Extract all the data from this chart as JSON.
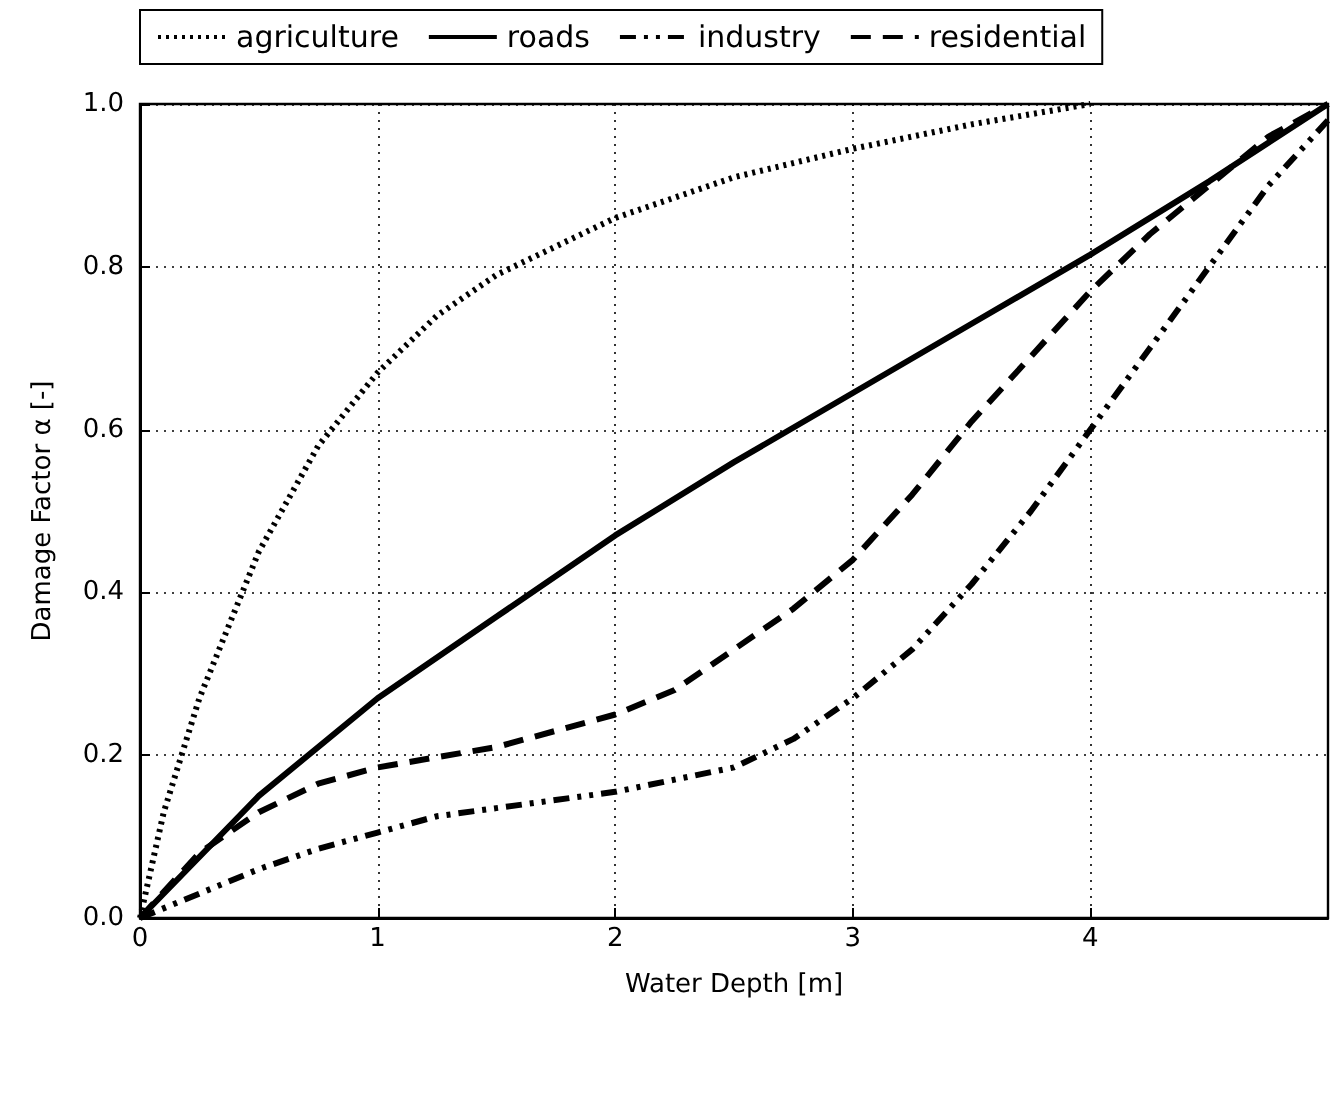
{
  "chart_data": {
    "type": "line",
    "xlabel": "Water Depth [m]",
    "ylabel": "Damage Factor α [-]",
    "xlim": [
      0,
      5
    ],
    "ylim": [
      0,
      1
    ],
    "xticks": [
      0,
      1,
      2,
      3,
      4
    ],
    "yticks": [
      {
        "value": 0,
        "label": "0.0"
      },
      {
        "value": 0.2,
        "label": "0.2"
      },
      {
        "value": 0.4,
        "label": "0.4"
      },
      {
        "value": 0.6,
        "label": "0.6"
      },
      {
        "value": 0.8,
        "label": "0.8"
      },
      {
        "value": 1,
        "label": "1.0"
      }
    ],
    "grid": true,
    "legend": "top",
    "marker": "none",
    "series": [
      {
        "name": "agriculture",
        "color": "#000000",
        "line_style": "dotted",
        "x": [
          0,
          0.1,
          0.25,
          0.5,
          0.75,
          1,
          1.25,
          1.5,
          2,
          2.5,
          3,
          3.5,
          4
        ],
        "values": [
          0,
          0.13,
          0.27,
          0.45,
          0.58,
          0.67,
          0.74,
          0.79,
          0.86,
          0.91,
          0.945,
          0.975,
          1.0
        ]
      },
      {
        "name": "roads",
        "color": "#000000",
        "line_style": "solid",
        "x": [
          0,
          0.5,
          1,
          1.5,
          2,
          2.5,
          3,
          3.5,
          4,
          4.5,
          5
        ],
        "values": [
          0,
          0.15,
          0.27,
          0.37,
          0.47,
          0.56,
          0.645,
          0.73,
          0.815,
          0.905,
          1.0
        ]
      },
      {
        "name": "industry",
        "color": "#000000",
        "line_style": "dashdot",
        "x": [
          0,
          0.25,
          0.5,
          0.75,
          1,
          1.25,
          1.5,
          2,
          2.5,
          2.75,
          3,
          3.25,
          3.5,
          3.75,
          4,
          4.25,
          4.5,
          4.75,
          5
        ],
        "values": [
          0,
          0.03,
          0.06,
          0.085,
          0.105,
          0.125,
          0.135,
          0.155,
          0.185,
          0.22,
          0.27,
          0.33,
          0.41,
          0.5,
          0.6,
          0.7,
          0.8,
          0.9,
          0.98
        ]
      },
      {
        "name": "residential",
        "color": "#000000",
        "line_style": "dashed",
        "x": [
          0,
          0.25,
          0.5,
          0.75,
          1,
          1.5,
          2,
          2.25,
          2.5,
          2.75,
          3,
          3.25,
          3.5,
          3.75,
          4,
          4.25,
          4.5,
          4.75,
          5
        ],
        "values": [
          0,
          0.08,
          0.13,
          0.165,
          0.185,
          0.21,
          0.25,
          0.28,
          0.33,
          0.38,
          0.44,
          0.52,
          0.61,
          0.69,
          0.77,
          0.84,
          0.9,
          0.96,
          1.0
        ]
      }
    ]
  }
}
